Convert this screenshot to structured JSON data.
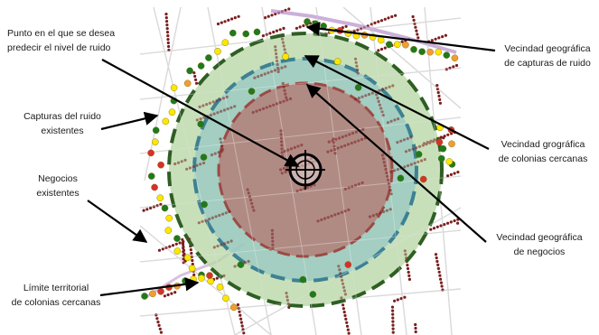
{
  "labels": {
    "prediction_point_line1": "Punto en el que se desea",
    "prediction_point_line2": "predecir el nivel de ruido",
    "noise_captures_line1": "Capturas del ruido",
    "noise_captures_line2": "existentes",
    "businesses_line1": "Negocios",
    "businesses_line2": "existentes",
    "boundary_line1": "Límite territorial",
    "boundary_line2": "de colonias cercanas",
    "noise_neighborhood_line1": "Vecindad geográfica",
    "noise_neighborhood_line2": "de capturas de ruido",
    "colonies_neighborhood_line1": "Vecindad grográfica",
    "colonies_neighborhood_line2": "de colonias cercanas",
    "business_neighborhood_line1": "Vecindad geográfica",
    "business_neighborhood_line2": "de negocios"
  },
  "colors": {
    "noise_ring_fill": "#b8d7a6",
    "noise_ring_stroke": "#2f5e23",
    "colonies_ring_fill": "#8fc4c5",
    "colonies_ring_stroke": "#3d8193",
    "business_ring_fill": "#b5716c",
    "business_ring_stroke": "#9c4a45",
    "business_dots": "#7a1e1e",
    "streets": "#c8c8c8",
    "boundary_road": "#b58fc9",
    "noise_green": "#1f7a1f",
    "noise_yellow": "#ffe600",
    "noise_orange": "#f39c33",
    "noise_red": "#d9302b"
  }
}
